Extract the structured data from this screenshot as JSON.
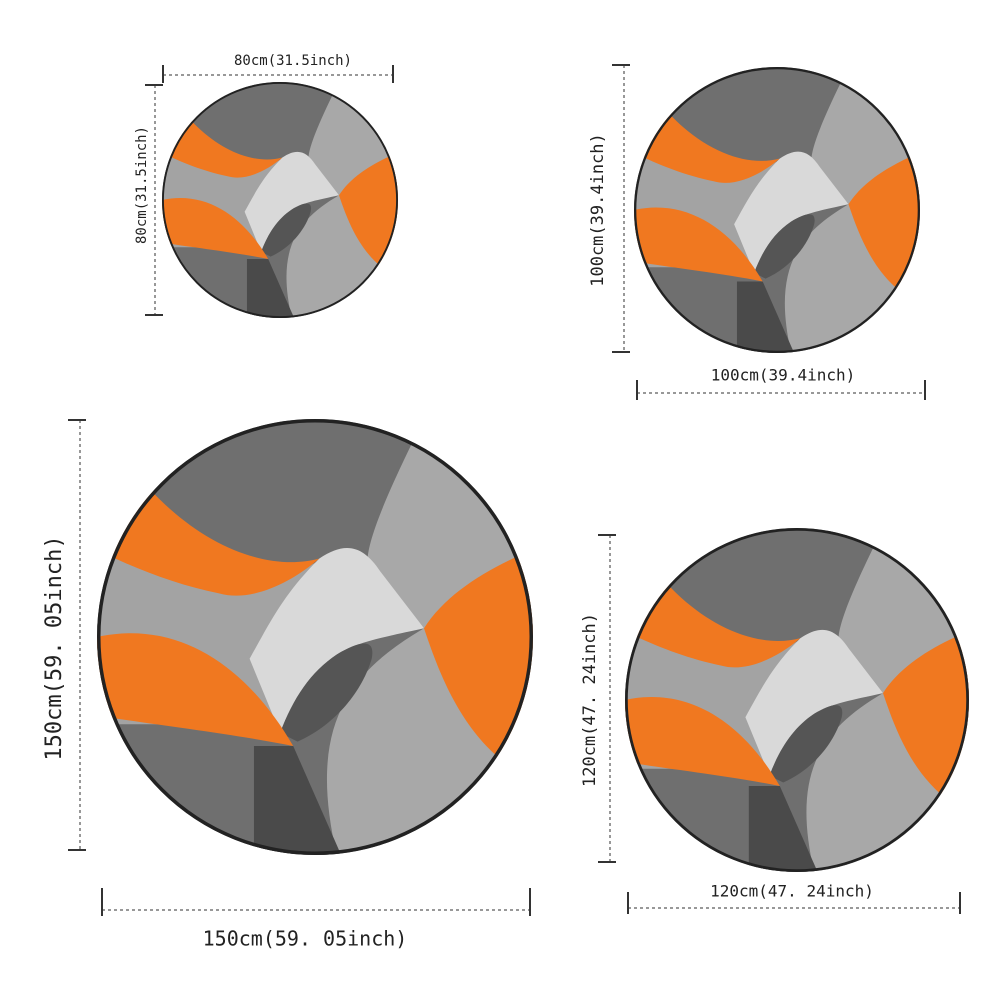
{
  "rugs": [
    {
      "width_label": "80cm(31.5inch)",
      "height_label": "80cm(31.5inch)"
    },
    {
      "width_label": "100cm(39.4inch)",
      "height_label": "100cm(39.4inch)"
    },
    {
      "width_label": "150cm(59. 05inch)",
      "height_label": "150cm(59. 05inch)"
    },
    {
      "width_label": "120cm(47. 24inch)",
      "height_label": "120cm(47. 24inch)"
    }
  ]
}
